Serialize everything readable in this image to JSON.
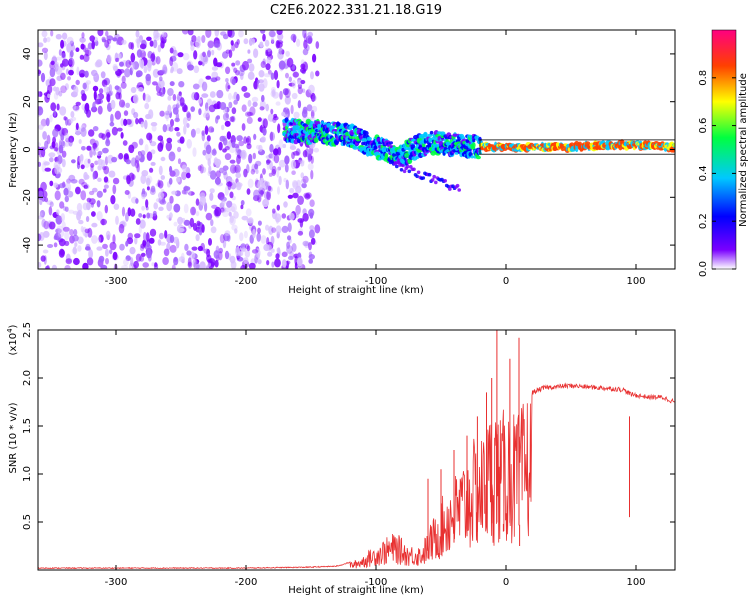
{
  "title": "C2E6.2022.331.21.18.G19",
  "chart_data": [
    {
      "type": "heatmap",
      "xlabel": "Height of straight line (km)",
      "ylabel": "Frequency (Hz)",
      "xlim": [
        -360,
        130
      ],
      "ylim": [
        -50,
        50
      ],
      "x_ticks": [
        -300,
        -200,
        -100,
        0,
        100
      ],
      "x_tick_labels": [
        "-300",
        "-200",
        "-100",
        "0",
        "100"
      ],
      "y_ticks": [
        -40,
        -20,
        0,
        20,
        40
      ],
      "y_tick_labels": [
        "-40",
        "-20",
        "0",
        "20",
        "40"
      ],
      "noise_region_x": [
        -360,
        -145
      ],
      "ridge": [
        {
          "x": -170,
          "y": 8
        },
        {
          "x": -140,
          "y": 7
        },
        {
          "x": -120,
          "y": 6
        },
        {
          "x": -100,
          "y": 1
        },
        {
          "x": -80,
          "y": -2
        },
        {
          "x": -60,
          "y": 3
        },
        {
          "x": -40,
          "y": 2
        },
        {
          "x": -20,
          "y": 1
        },
        {
          "x": 0,
          "y": 1
        },
        {
          "x": 50,
          "y": 1
        },
        {
          "x": 90,
          "y": 2
        },
        {
          "x": 130,
          "y": 1
        }
      ],
      "colorbar": {
        "label": "Normalized spectral amplitude",
        "range": [
          0.0,
          1.0
        ],
        "ticks": [
          0.0,
          0.2,
          0.4,
          0.6,
          0.8
        ],
        "tick_labels": [
          "0.0",
          "0.2",
          "0.4",
          "0.6",
          "0.8"
        ],
        "colors": [
          "#ffffff",
          "#7a00ff",
          "#0000ff",
          "#00c8ff",
          "#00ff40",
          "#ffff00",
          "#ff4000",
          "#ff0080"
        ]
      },
      "grid": false
    },
    {
      "type": "line",
      "xlabel": "Height of straight line (km)",
      "ylabel": "SNR (10 * v/v)",
      "multiplier_label": "(x10",
      "multiplier_exp": "4",
      "multiplier_close": ")",
      "xlim": [
        -360,
        130
      ],
      "ylim": [
        0,
        2.5
      ],
      "x_ticks": [
        -300,
        -200,
        -100,
        0,
        100
      ],
      "x_tick_labels": [
        "-300",
        "-200",
        "-100",
        "0",
        "100"
      ],
      "y_ticks": [
        0.5,
        1.0,
        1.5,
        2.0,
        2.5
      ],
      "y_tick_labels": [
        "0.5",
        "1.0",
        "1.5",
        "2.0",
        "2.5"
      ],
      "line_color": "#e83030",
      "series": [
        {
          "x": [
            -360,
            -300,
            -200,
            -150,
            -130,
            -115,
            -105,
            -95,
            -85,
            -75,
            -65,
            -55,
            -45,
            -35,
            -25,
            -18,
            -12,
            -8,
            -4,
            0,
            5,
            10,
            15,
            20,
            30,
            50,
            70,
            90,
            96,
            100,
            110,
            120,
            130
          ],
          "y": [
            0.02,
            0.02,
            0.02,
            0.03,
            0.04,
            0.1,
            0.2,
            0.3,
            0.38,
            0.25,
            0.25,
            0.55,
            0.85,
            1.05,
            1.3,
            1.35,
            1.6,
            1.7,
            1.5,
            1.7,
            1.6,
            1.55,
            1.75,
            1.85,
            1.9,
            1.92,
            1.9,
            1.88,
            1.83,
            1.82,
            1.8,
            1.8,
            1.75
          ]
        }
      ],
      "spikes": [
        {
          "x": -60,
          "y": 0.95
        },
        {
          "x": -50,
          "y": 1.05
        },
        {
          "x": -40,
          "y": 1.25
        },
        {
          "x": -30,
          "y": 1.4
        },
        {
          "x": -22,
          "y": 1.6
        },
        {
          "x": -15,
          "y": 1.85
        },
        {
          "x": -11,
          "y": 2.0
        },
        {
          "x": -7,
          "y": 2.5
        },
        {
          "x": -2,
          "y": 0.4
        },
        {
          "x": 3,
          "y": 2.2
        },
        {
          "x": 10,
          "y": 2.42
        },
        {
          "x": 10.5,
          "y": 0.25
        },
        {
          "x": 95,
          "y": 1.6
        }
      ],
      "grid": false
    }
  ]
}
